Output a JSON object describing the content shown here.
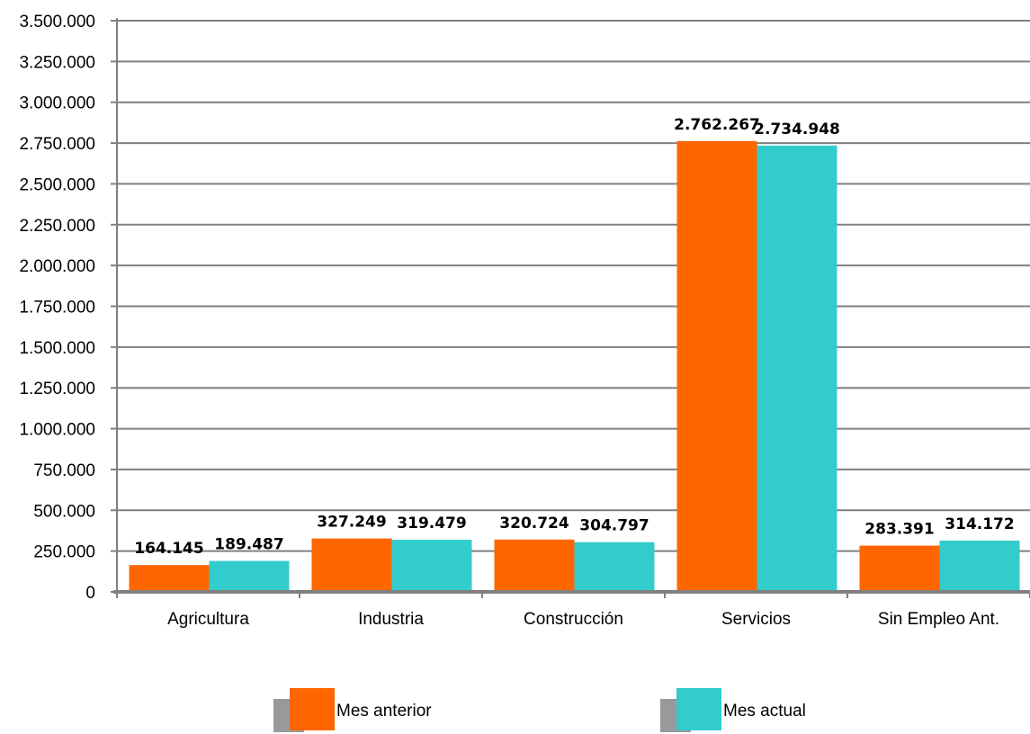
{
  "chart_data": {
    "type": "bar",
    "title": "",
    "xlabel": "",
    "ylabel": "",
    "categories": [
      "Agricultura",
      "Industria",
      "Construcción",
      "Servicios",
      "Sin Empleo Ant."
    ],
    "series": [
      {
        "name": "Mes anterior",
        "color": "#ff6600",
        "values": [
          164145,
          327249,
          320724,
          2762267,
          283391
        ],
        "labels": [
          "164.145",
          "327.249",
          "320.724",
          "2.762.267",
          "283.391"
        ]
      },
      {
        "name": "Mes actual",
        "color": "#33cccc",
        "values": [
          189487,
          319479,
          304797,
          2734948,
          314172
        ],
        "labels": [
          "189.487",
          "319.479",
          "304.797",
          "2.734.948",
          "314.172"
        ]
      }
    ],
    "ylim": [
      0,
      3500000
    ],
    "yticks": [
      0,
      250000,
      500000,
      750000,
      1000000,
      1250000,
      1500000,
      1750000,
      2000000,
      2250000,
      2500000,
      2750000,
      3000000,
      3250000,
      3500000
    ],
    "ytick_labels": [
      "0",
      "250.000",
      "500.000",
      "750.000",
      "1.000.000",
      "1.250.000",
      "1.500.000",
      "1.750.000",
      "2.000.000",
      "2.250.000",
      "2.500.000",
      "2.750.000",
      "3.000.000",
      "3.250.000",
      "3.500.000"
    ],
    "grid": true,
    "legend_position": "bottom"
  }
}
